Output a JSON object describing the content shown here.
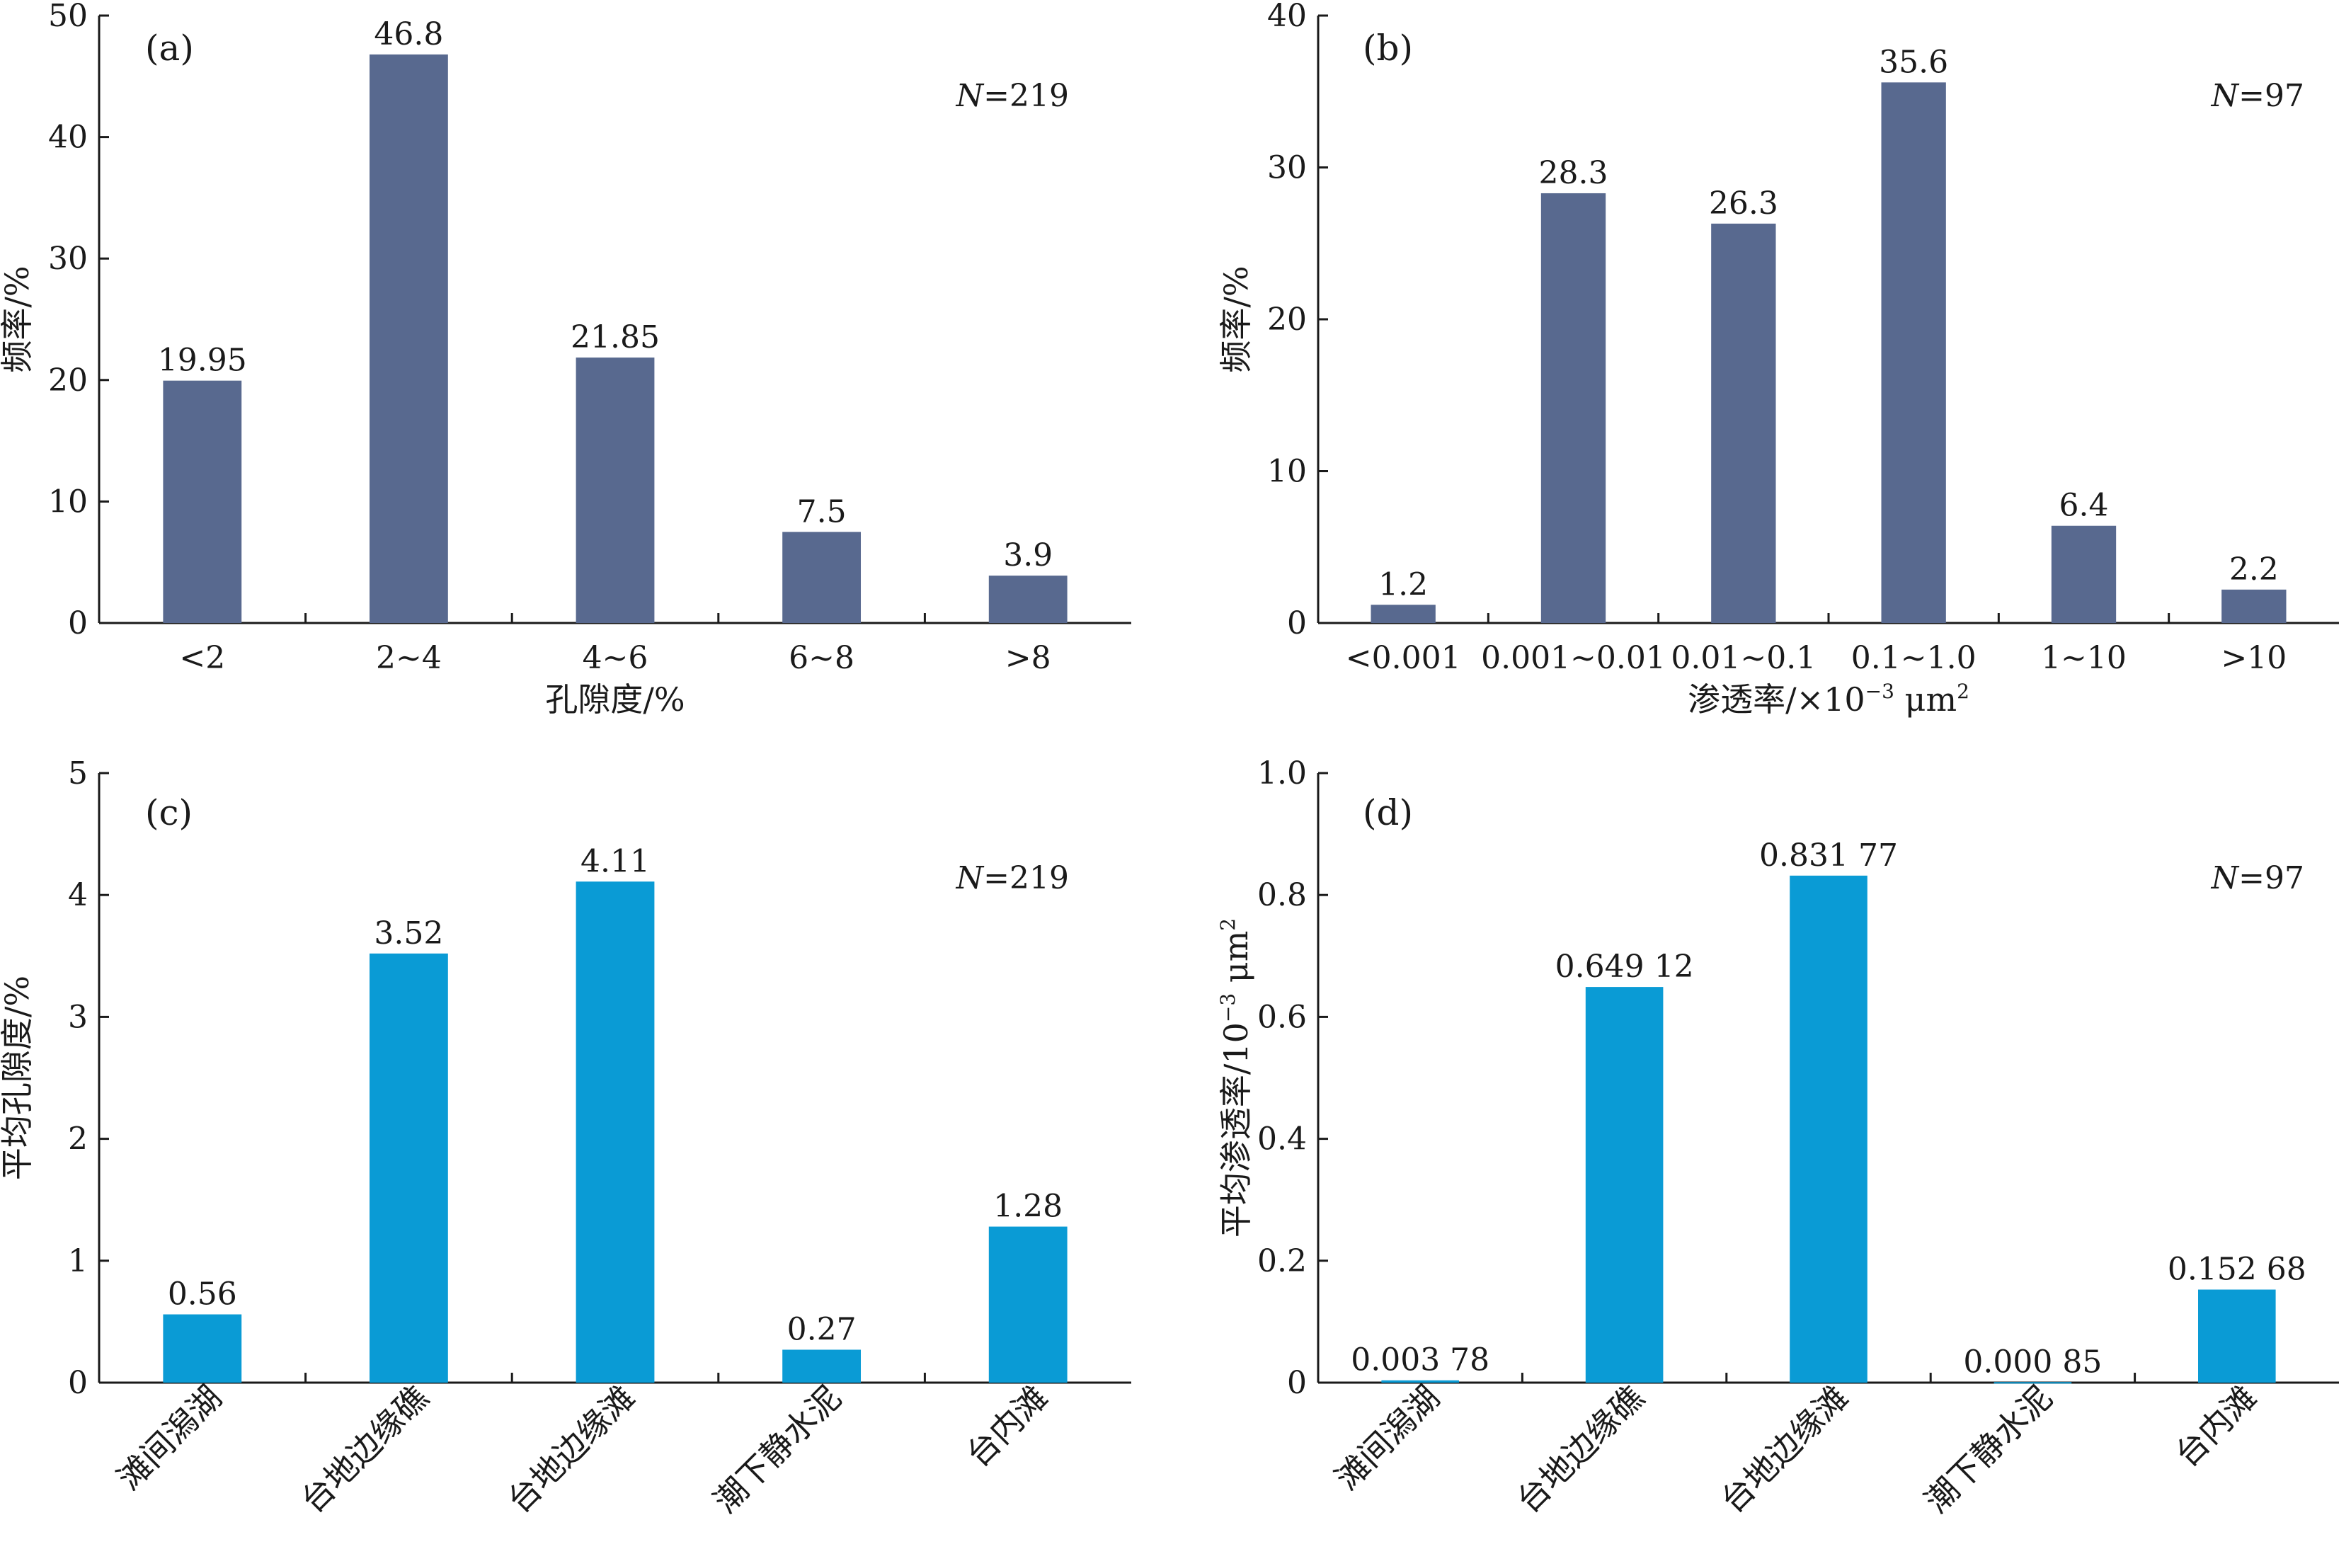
{
  "chart_data": [
    {
      "panel": "(a)",
      "type": "bar",
      "categories": [
        "<2",
        "2~4",
        "4~6",
        "6~8",
        ">8"
      ],
      "values": [
        19.95,
        46.8,
        21.85,
        7.5,
        3.9
      ],
      "value_labels": [
        "19.95",
        "46.8",
        "21.85",
        "7.5",
        "3.9"
      ],
      "xlabel": "孔隙度/%",
      "ylabel": "频率/%",
      "ylim": [
        0,
        50
      ],
      "yticks": [
        0,
        10,
        20,
        30,
        40,
        50
      ],
      "n_label": {
        "italic": "N",
        "rest": "=219"
      },
      "color": "#58698f",
      "grid": false
    },
    {
      "panel": "(b)",
      "type": "bar",
      "categories": [
        "<0.001",
        "0.001~0.01",
        "0.01~0.1",
        "0.1~1.0",
        "1~10",
        ">10"
      ],
      "values": [
        1.2,
        28.3,
        26.3,
        35.6,
        6.4,
        2.2
      ],
      "value_labels": [
        "1.2",
        "28.3",
        "26.3",
        "35.6",
        "6.4",
        "2.2"
      ],
      "xlabel": {
        "main": "渗透率/×10",
        "sup": "−3",
        "unit": " μm",
        "sup2": "2"
      },
      "ylabel": "频率/%",
      "ylim": [
        0,
        40
      ],
      "yticks": [
        0,
        10,
        20,
        30,
        40
      ],
      "n_label": {
        "italic": "N",
        "rest": "=97"
      },
      "color": "#58698f",
      "grid": false
    },
    {
      "panel": "(c)",
      "type": "bar",
      "categories": [
        "滩间潟湖",
        "台地边缘礁",
        "台地边缘滩",
        "潮下静水泥",
        "台内滩"
      ],
      "values": [
        0.56,
        3.52,
        4.11,
        0.27,
        1.28
      ],
      "value_labels": [
        "0.56",
        "3.52",
        "4.11",
        "0.27",
        "1.28"
      ],
      "xlabel": "",
      "ylabel": "平均孔隙度/%",
      "ylim": [
        0,
        5
      ],
      "yticks": [
        0,
        1,
        2,
        3,
        4,
        5
      ],
      "n_label": {
        "italic": "N",
        "rest": "=219"
      },
      "color": "#0a9bd5",
      "grid": false
    },
    {
      "panel": "(d)",
      "type": "bar",
      "categories": [
        "滩间潟湖",
        "台地边缘礁",
        "台地边缘滩",
        "潮下静水泥",
        "台内滩"
      ],
      "values": [
        0.00378,
        0.64912,
        0.83177,
        0.00085,
        0.15268
      ],
      "value_labels": [
        "0.003 78",
        "0.649 12",
        "0.831 77",
        "0.000 85",
        "0.152 68"
      ],
      "xlabel": "",
      "ylabel": {
        "main": "平均渗透率/10",
        "sup": "−3",
        "unit": " μm",
        "sup2": "2"
      },
      "ylim": [
        0,
        1.0
      ],
      "yticks": [
        0,
        0.2,
        0.4,
        0.6,
        0.8,
        1.0
      ],
      "ytick_labels": [
        "0",
        "0.2",
        "0.4",
        "0.6",
        "0.8",
        "1.0"
      ],
      "n_label": {
        "italic": "N",
        "rest": "=97"
      },
      "color": "#0a9bd5",
      "grid": false
    }
  ]
}
